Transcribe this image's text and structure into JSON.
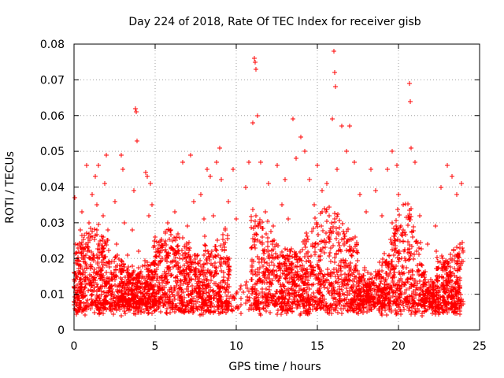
{
  "chart_data": {
    "type": "scatter",
    "title": "Day 224 of 2018, Rate Of TEC Index for receiver gisb",
    "xlabel": "GPS time / hours",
    "ylabel": "ROTI / TECUs",
    "xlim": [
      0,
      25
    ],
    "ylim": [
      0,
      0.08
    ],
    "x_ticks": [
      0,
      5,
      10,
      15,
      20,
      25
    ],
    "x_tick_labels": [
      "0",
      "5",
      "10",
      "15",
      "20",
      "25"
    ],
    "y_ticks": [
      0,
      0.01,
      0.02,
      0.03,
      0.04,
      0.05,
      0.06,
      0.07,
      0.08
    ],
    "y_tick_labels": [
      "0",
      "0.01",
      "0.02",
      "0.03",
      "0.04",
      "0.05",
      "0.06",
      "0.07",
      "0.08"
    ],
    "grid": true,
    "marker": "+",
    "color": "#ff0000",
    "series": [
      {
        "name": "ROTI",
        "points": [
          [
            0.0,
            0.012
          ],
          [
            0.05,
            0.037
          ],
          [
            0.1,
            0.024
          ],
          [
            0.15,
            0.015
          ],
          [
            0.2,
            0.007
          ],
          [
            0.3,
            0.018
          ],
          [
            0.4,
            0.028
          ],
          [
            0.5,
            0.033
          ],
          [
            0.6,
            0.022
          ],
          [
            0.7,
            0.012
          ],
          [
            0.8,
            0.046
          ],
          [
            0.9,
            0.03
          ],
          [
            1.0,
            0.02
          ],
          [
            1.1,
            0.038
          ],
          [
            1.2,
            0.014
          ],
          [
            1.3,
            0.043
          ],
          [
            1.4,
            0.035
          ],
          [
            1.5,
            0.046
          ],
          [
            1.6,
            0.025
          ],
          [
            1.7,
            0.01
          ],
          [
            1.8,
            0.032
          ],
          [
            1.9,
            0.041
          ],
          [
            2.0,
            0.049
          ],
          [
            2.1,
            0.028
          ],
          [
            2.2,
            0.019
          ],
          [
            2.3,
            0.006
          ],
          [
            2.5,
            0.036
          ],
          [
            2.6,
            0.024
          ],
          [
            2.8,
            0.017
          ],
          [
            2.9,
            0.049
          ],
          [
            3.0,
            0.045
          ],
          [
            3.1,
            0.03
          ],
          [
            3.3,
            0.021
          ],
          [
            3.5,
            0.011
          ],
          [
            3.6,
            0.028
          ],
          [
            3.7,
            0.039
          ],
          [
            3.8,
            0.062
          ],
          [
            3.85,
            0.061
          ],
          [
            3.9,
            0.053
          ],
          [
            4.0,
            0.022
          ],
          [
            4.2,
            0.015
          ],
          [
            4.4,
            0.044
          ],
          [
            4.5,
            0.043
          ],
          [
            4.6,
            0.032
          ],
          [
            4.7,
            0.041
          ],
          [
            4.8,
            0.035
          ],
          [
            5.0,
            0.026
          ],
          [
            5.2,
            0.018
          ],
          [
            5.5,
            0.012
          ],
          [
            5.8,
            0.03
          ],
          [
            6.0,
            0.023
          ],
          [
            6.2,
            0.033
          ],
          [
            6.5,
            0.016
          ],
          [
            6.7,
            0.047
          ],
          [
            7.0,
            0.029
          ],
          [
            7.2,
            0.049
          ],
          [
            7.4,
            0.036
          ],
          [
            7.6,
            0.021
          ],
          [
            7.8,
            0.038
          ],
          [
            8.0,
            0.031
          ],
          [
            8.2,
            0.045
          ],
          [
            8.4,
            0.043
          ],
          [
            8.6,
            0.032
          ],
          [
            8.8,
            0.047
          ],
          [
            9.0,
            0.051
          ],
          [
            9.1,
            0.042
          ],
          [
            9.3,
            0.028
          ],
          [
            9.5,
            0.036
          ],
          [
            9.8,
            0.045
          ],
          [
            10.0,
            0.031
          ],
          [
            10.3,
            0.007
          ],
          [
            10.6,
            0.04
          ],
          [
            10.8,
            0.047
          ],
          [
            11.0,
            0.058
          ],
          [
            11.1,
            0.076
          ],
          [
            11.15,
            0.075
          ],
          [
            11.2,
            0.073
          ],
          [
            11.3,
            0.06
          ],
          [
            11.5,
            0.047
          ],
          [
            11.8,
            0.033
          ],
          [
            12.0,
            0.041
          ],
          [
            12.3,
            0.029
          ],
          [
            12.5,
            0.046
          ],
          [
            12.8,
            0.035
          ],
          [
            13.0,
            0.042
          ],
          [
            13.2,
            0.031
          ],
          [
            13.5,
            0.059
          ],
          [
            13.7,
            0.048
          ],
          [
            14.0,
            0.054
          ],
          [
            14.2,
            0.05
          ],
          [
            14.5,
            0.042
          ],
          [
            14.8,
            0.035
          ],
          [
            15.0,
            0.046
          ],
          [
            15.3,
            0.039
          ],
          [
            15.6,
            0.041
          ],
          [
            15.9,
            0.059
          ],
          [
            16.0,
            0.078
          ],
          [
            16.05,
            0.072
          ],
          [
            16.1,
            0.068
          ],
          [
            16.2,
            0.045
          ],
          [
            16.5,
            0.057
          ],
          [
            16.8,
            0.05
          ],
          [
            17.0,
            0.057
          ],
          [
            17.3,
            0.047
          ],
          [
            17.6,
            0.038
          ],
          [
            18.0,
            0.033
          ],
          [
            18.3,
            0.045
          ],
          [
            18.6,
            0.039
          ],
          [
            19.0,
            0.032
          ],
          [
            19.3,
            0.045
          ],
          [
            19.6,
            0.05
          ],
          [
            19.9,
            0.046
          ],
          [
            20.0,
            0.038
          ],
          [
            20.3,
            0.035
          ],
          [
            20.7,
            0.069
          ],
          [
            20.75,
            0.064
          ],
          [
            20.8,
            0.051
          ],
          [
            21.0,
            0.047
          ],
          [
            21.3,
            0.032
          ],
          [
            21.8,
            0.024
          ],
          [
            22.3,
            0.029
          ],
          [
            22.6,
            0.04
          ],
          [
            23.0,
            0.046
          ],
          [
            23.3,
            0.043
          ],
          [
            23.6,
            0.038
          ],
          [
            23.9,
            0.041
          ]
        ]
      }
    ],
    "note": "Dense background cloud of many thousands of points between ~0.003 and ~0.03 TECU across 0–24 h; representative outliers listed above."
  }
}
